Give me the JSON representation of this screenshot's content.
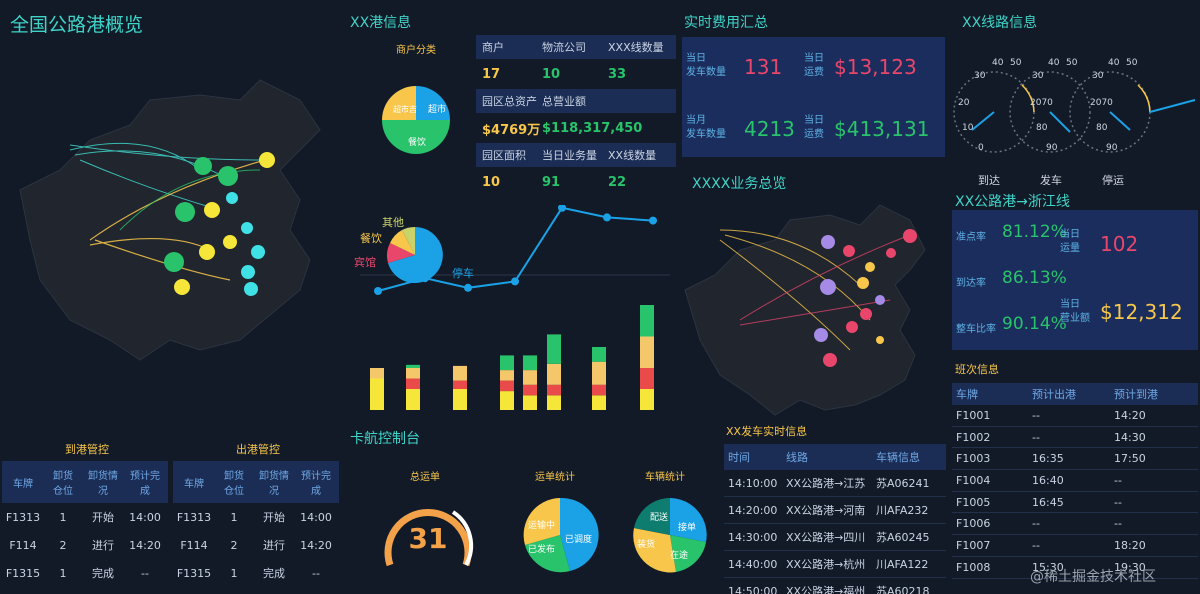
{
  "header": {
    "title": "全国公路港概览"
  },
  "port_info": {
    "title": "XX港信息",
    "pie_title": "商户分类",
    "pie_labels": {
      "store": "超市",
      "restaurant": "餐饮",
      "other": "超市吉"
    },
    "table": [
      {
        "c1": "商户",
        "c2": "物流公司",
        "c3": "XXX线数量"
      },
      {
        "c1": "17",
        "c2": "10",
        "c3": "33"
      },
      {
        "c1": "园区总资产",
        "c2": "总营业额",
        "c3": ""
      },
      {
        "c1": "$4769万",
        "c2": "$118,317,450",
        "c3": ""
      },
      {
        "c1": "园区面积",
        "c2": "当日业务量",
        "c3": "XX线数量"
      },
      {
        "c1": "10",
        "c2": "91",
        "c3": "22"
      }
    ]
  },
  "mid_chart": {
    "pie_labels": {
      "other": "其他",
      "restaurant": "餐饮",
      "hotel": "宾馆",
      "parking": "停车"
    },
    "line_values": [
      10,
      14,
      11,
      13,
      36,
      33,
      32
    ],
    "bars": [
      {
        "yellow": 30,
        "orange": 10,
        "red": 0,
        "green": 0
      },
      {
        "yellow": 20,
        "orange": 10,
        "red": 10,
        "green": 3
      },
      {
        "yellow": 20,
        "orange": 14,
        "red": 8,
        "green": 0
      },
      {
        "yellow": 18,
        "orange": 10,
        "red": 10,
        "green": 14
      },
      {
        "yellow": 14,
        "orange": 14,
        "red": 10,
        "green": 14
      },
      {
        "yellow": 14,
        "orange": 20,
        "red": 10,
        "green": 28
      },
      {
        "yellow": 14,
        "orange": 22,
        "red": 10,
        "green": 14
      },
      {
        "yellow": 20,
        "orange": 30,
        "red": 20,
        "green": 30
      }
    ]
  },
  "fees": {
    "title": "实时费用汇总",
    "rows": [
      {
        "l1": "当日",
        "l2": "发车数量",
        "v1": "131",
        "r1": "当日",
        "r2": "运费",
        "v2": "$13,123"
      },
      {
        "l1": "当月",
        "l2": "发车数量",
        "v1": "4213",
        "r1": "当日",
        "r2": "运费",
        "v2": "$413,131"
      }
    ]
  },
  "line_info": {
    "title": "XX线路信息",
    "gauges": [
      {
        "ticks": [
          "40",
          "50",
          "20",
          "10",
          "0"
        ],
        "extra": "30"
      },
      {
        "ticks": [
          "40",
          "50",
          "2070",
          "80",
          "90"
        ],
        "extra": "30"
      },
      {
        "ticks": [
          "40",
          "50",
          "2070",
          "80",
          "90"
        ],
        "extra": "30"
      }
    ],
    "labels": [
      "到达",
      "发车",
      "停运"
    ]
  },
  "biz_overview": {
    "title": "XXXX业务总览"
  },
  "zhejiang": {
    "title": "XX公路港→浙江线",
    "rows": [
      {
        "label": "准点率",
        "value": "81.12%"
      },
      {
        "label": "到达率",
        "value": "86.13%"
      },
      {
        "label": "整车比率",
        "value": "90.14%"
      }
    ],
    "side": [
      {
        "l1": "当日",
        "l2": "运量",
        "value": "102"
      },
      {
        "l1": "当日",
        "l2": "营业额",
        "value": "$12,312"
      }
    ]
  },
  "shift": {
    "title": "班次信息",
    "headers": [
      "车牌",
      "预计出港",
      "预计到港"
    ],
    "rows": [
      [
        "F1001",
        "--",
        "14:20"
      ],
      [
        "F1002",
        "--",
        "14:30"
      ],
      [
        "F1003",
        "16:35",
        "17:50"
      ],
      [
        "F1004",
        "16:40",
        "--"
      ],
      [
        "F1005",
        "16:45",
        "--"
      ],
      [
        "F1006",
        "--",
        "--"
      ],
      [
        "F1007",
        "--",
        "18:20"
      ],
      [
        "F1008",
        "15:30",
        "19:30"
      ]
    ]
  },
  "arrive": {
    "title": "到港管控",
    "headers": [
      "车牌",
      "卸货仓位",
      "卸货情况",
      "预计完成"
    ],
    "rows": [
      [
        "F1313",
        "1",
        "开始",
        "14:00"
      ],
      [
        "F114",
        "2",
        "进行",
        "14:20"
      ],
      [
        "F1315",
        "1",
        "完成",
        "--"
      ]
    ]
  },
  "depart": {
    "title": "出港管控",
    "headers": [
      "车牌",
      "卸货仓位",
      "卸货情况",
      "预计完成"
    ],
    "rows": [
      [
        "F1313",
        "1",
        "开始",
        "14:00"
      ],
      [
        "F114",
        "2",
        "进行",
        "14:20"
      ],
      [
        "F1315",
        "1",
        "完成",
        "--"
      ]
    ]
  },
  "card_control": {
    "title": "卡航控制台",
    "total_title": "总运单",
    "total_value": "31",
    "order_title": "运单统计",
    "order_labels": [
      "运输中",
      "已发布",
      "已调度"
    ],
    "vehicle_title": "车辆统计",
    "vehicle_labels": [
      "配送",
      "接单",
      "在途",
      "装货"
    ]
  },
  "dispatch": {
    "title": "XX发车实时信息",
    "headers": [
      "时间",
      "线路",
      "车辆信息"
    ],
    "rows": [
      [
        "14:10:00",
        "XX公路港→江苏",
        "苏A06241"
      ],
      [
        "14:20:00",
        "XX公路港→河南",
        "川AFA232"
      ],
      [
        "14:30:00",
        "XX公路港→四川",
        "苏A60245"
      ],
      [
        "14:40:00",
        "XX公路港→杭州",
        "川AFA122"
      ],
      [
        "14:50:00",
        "XX公路港→福州",
        "苏A60218"
      ]
    ]
  },
  "watermark": "@稀土掘金技术社区",
  "colors": {
    "cyan": "#3fd4c8",
    "yellow": "#f7c64a",
    "green": "#28c36b",
    "pink": "#e9466c",
    "blue": "#1aa1e6"
  }
}
